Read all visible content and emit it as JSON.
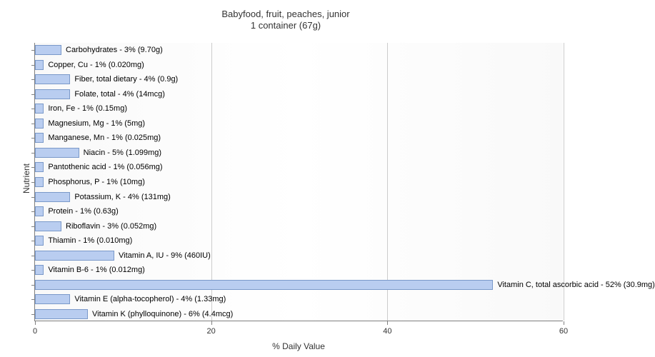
{
  "type": "bar-horizontal",
  "title_line1": "Babyfood, fruit, peaches, junior",
  "title_line2": "1 container (67g)",
  "ylabel": "Nutrient",
  "xlabel": "% Daily Value",
  "plot_bg_gradient": [
    "#f5f5f5",
    "#ffffff",
    "#f5f5f5"
  ],
  "bar_fill": "#b9cdf0",
  "bar_stroke": "#7a99c9",
  "grid_color": "#cccccc",
  "axis_color": "#808080",
  "xticks": [
    0,
    20,
    40,
    60
  ],
  "xlim": [
    0,
    60
  ],
  "label_fontsize": 11,
  "title_fontsize": 13,
  "axis_label_fontsize": 12,
  "bars": [
    {
      "label": "Carbohydrates - 3% (9.70g)",
      "value": 3
    },
    {
      "label": "Copper, Cu - 1% (0.020mg)",
      "value": 1
    },
    {
      "label": "Fiber, total dietary - 4% (0.9g)",
      "value": 4
    },
    {
      "label": "Folate, total - 4% (14mcg)",
      "value": 4
    },
    {
      "label": "Iron, Fe - 1% (0.15mg)",
      "value": 1
    },
    {
      "label": "Magnesium, Mg - 1% (5mg)",
      "value": 1
    },
    {
      "label": "Manganese, Mn - 1% (0.025mg)",
      "value": 1
    },
    {
      "label": "Niacin - 5% (1.099mg)",
      "value": 5
    },
    {
      "label": "Pantothenic acid - 1% (0.056mg)",
      "value": 1
    },
    {
      "label": "Phosphorus, P - 1% (10mg)",
      "value": 1
    },
    {
      "label": "Potassium, K - 4% (131mg)",
      "value": 4
    },
    {
      "label": "Protein - 1% (0.63g)",
      "value": 1
    },
    {
      "label": "Riboflavin - 3% (0.052mg)",
      "value": 3
    },
    {
      "label": "Thiamin - 1% (0.010mg)",
      "value": 1
    },
    {
      "label": "Vitamin A, IU - 9% (460IU)",
      "value": 9
    },
    {
      "label": "Vitamin B-6 - 1% (0.012mg)",
      "value": 1
    },
    {
      "label": "Vitamin C, total ascorbic acid - 52% (30.9mg)",
      "value": 52
    },
    {
      "label": "Vitamin E (alpha-tocopherol) - 4% (1.33mg)",
      "value": 4
    },
    {
      "label": "Vitamin K (phylloquinone) - 6% (4.4mcg)",
      "value": 6
    }
  ]
}
